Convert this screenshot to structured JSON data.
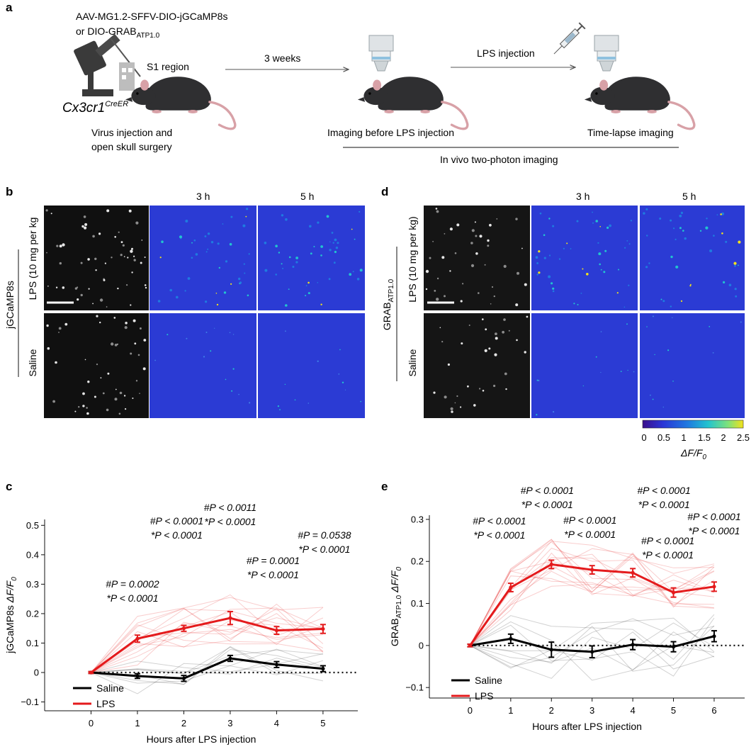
{
  "panel_a": {
    "label": "a",
    "virus_line1": "AAV-MG1.2-SFFV-DIO-jGCaMP8s",
    "virus_line2_prefix": "or DIO-GRAB",
    "virus_line2_sub": "ATP1.0",
    "s1_region": "S1 region",
    "mouse_line": "Cx3cr1",
    "mouse_line_sup": "CreER",
    "step1_line1": "Virus injection and",
    "step1_line2": "open skull surgery",
    "arrow1_label": "3 weeks",
    "arrow2_label": "LPS injection",
    "step2_label": "Imaging before LPS injection",
    "step3_label": "Time-lapse imaging",
    "bracket_label": "In vivo two-photon imaging"
  },
  "panel_b": {
    "label": "b",
    "col_3h": "3 h",
    "col_5h": "5 h",
    "sensor": "jGCaMP8s",
    "row_lps": "LPS (10 mg per kg",
    "row_saline": "Saline"
  },
  "panel_d": {
    "label": "d",
    "col_3h": "3 h",
    "col_5h": "5 h",
    "sensor_prefix": "GRAB",
    "sensor_sub": "ATP1.0",
    "row_lps": "LPS (10 mg per kg)",
    "row_saline": "Saline",
    "colorbar_ticks": [
      "0",
      "0.5",
      "1",
      "1.5",
      "2",
      "2.5"
    ],
    "colorbar_label": "ΔF/F",
    "colorbar_label_sub": "0",
    "colorbar_colors": [
      "#3b0f8c",
      "#2a35d6",
      "#1f7be0",
      "#22c3cf",
      "#7ee27a",
      "#f2e21a"
    ]
  },
  "panel_c": {
    "label": "c",
    "chart_data": {
      "type": "line",
      "xlabel": "Hours after LPS injection",
      "ylabel": "jGCaMP8s ΔF/F0",
      "x": [
        0,
        1,
        2,
        3,
        4,
        5
      ],
      "xticks": [
        "0",
        "1",
        "2",
        "3",
        "4",
        "5"
      ],
      "yticks": [
        "−0.1",
        "0",
        "0.1",
        "0.2",
        "0.3",
        "0.4",
        "0.5"
      ],
      "ylim": [
        -0.13,
        0.52
      ],
      "series": [
        {
          "name": "Saline",
          "color": "#000000",
          "values": [
            0,
            -0.012,
            -0.02,
            0.048,
            0.027,
            0.013
          ],
          "sem": [
            0.003,
            0.008,
            0.01,
            0.01,
            0.01,
            0.01
          ]
        },
        {
          "name": "LPS",
          "color": "#e41a1c",
          "values": [
            0,
            0.115,
            0.15,
            0.185,
            0.143,
            0.148
          ],
          "sem": [
            0.003,
            0.012,
            0.01,
            0.022,
            0.013,
            0.015
          ]
        }
      ],
      "annotations": [
        {
          "x": 1,
          "hash": "#P = 0.0002",
          "star": "*P < 0.0001"
        },
        {
          "x": 2,
          "hash": "#P < 0.0001",
          "star": "*P < 0.0001"
        },
        {
          "x": 3,
          "hash": "#P < 0.0011",
          "star": "*P < 0.0001"
        },
        {
          "x": 4,
          "hash": "#P = 0.0001",
          "star": "*P < 0.0001"
        },
        {
          "x": 5,
          "hash": "#P = 0.0538",
          "star": "*P < 0.0001"
        }
      ]
    }
  },
  "panel_e": {
    "label": "e",
    "chart_data": {
      "type": "line",
      "xlabel": "Hours after LPS injection",
      "ylabel": "GRABATP1.0 ΔF/F0",
      "x": [
        0,
        1,
        2,
        3,
        4,
        5,
        6
      ],
      "xticks": [
        "0",
        "1",
        "2",
        "3",
        "4",
        "5",
        "6"
      ],
      "yticks": [
        "−0.1",
        "0",
        "0.1",
        "0.2",
        "0.3"
      ],
      "ylim": [
        -0.125,
        0.31
      ],
      "series": [
        {
          "name": "Saline",
          "color": "#000000",
          "values": [
            0,
            0.016,
            -0.01,
            -0.015,
            0.002,
            -0.003,
            0.022
          ],
          "sem": [
            0.003,
            0.011,
            0.018,
            0.014,
            0.012,
            0.012,
            0.013
          ]
        },
        {
          "name": "LPS",
          "color": "#e41a1c",
          "values": [
            0,
            0.138,
            0.193,
            0.18,
            0.173,
            0.126,
            0.14
          ],
          "sem": [
            0.003,
            0.01,
            0.01,
            0.01,
            0.01,
            0.011,
            0.011
          ]
        }
      ],
      "annotations": [
        {
          "x": 1,
          "hash": "#P < 0.0001",
          "star": "*P < 0.0001"
        },
        {
          "x": 2,
          "hash": "#P < 0.0001",
          "star": "*P < 0.0001"
        },
        {
          "x": 3,
          "hash": "#P < 0.0001",
          "star": "*P < 0.0001"
        },
        {
          "x": 4,
          "hash": "#P < 0.0001",
          "star": "*P < 0.0001"
        },
        {
          "x": 5,
          "hash": "#P < 0.0001",
          "star": "*P < 0.0001"
        },
        {
          "x": 6,
          "hash": "#P < 0.0001",
          "star": "*P < 0.0001"
        }
      ]
    }
  }
}
